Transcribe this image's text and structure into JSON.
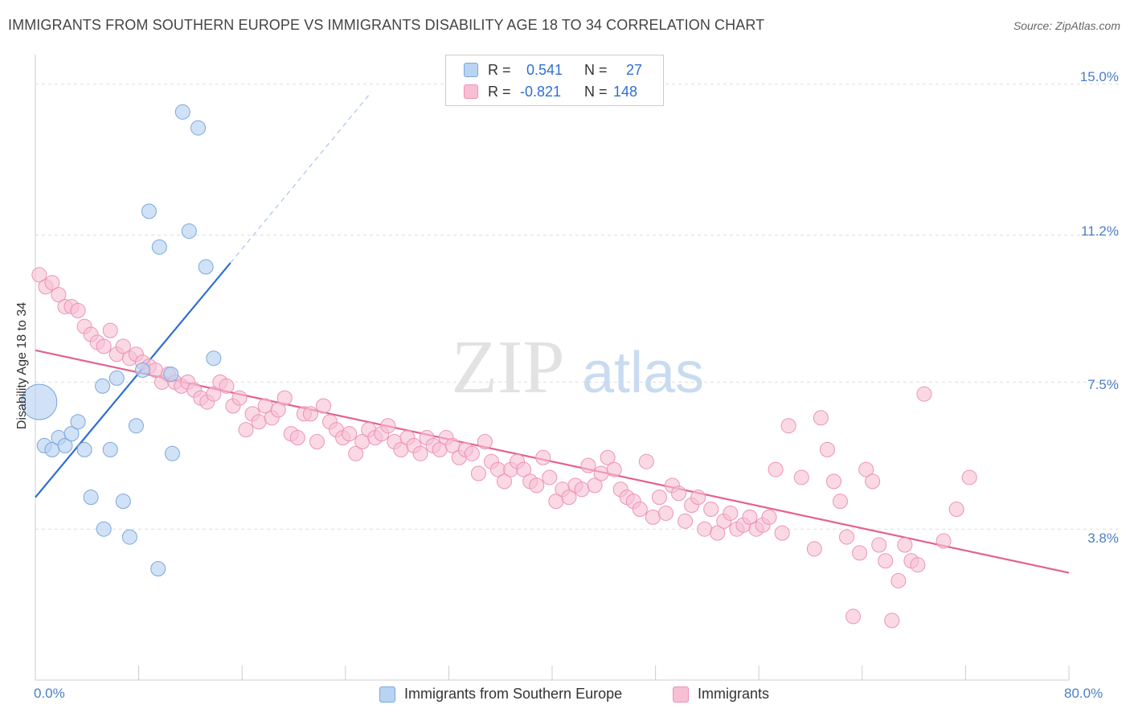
{
  "title": "IMMIGRANTS FROM SOUTHERN EUROPE VS IMMIGRANTS DISABILITY AGE 18 TO 34 CORRELATION CHART",
  "source": "Source: ZipAtlas.com",
  "watermark": {
    "zip": "ZIP",
    "atlas": "atlas"
  },
  "legend_top": {
    "rows": [
      {
        "r_label": "R =",
        "r_value": "0.541",
        "n_label": "N =",
        "n_value": "27"
      },
      {
        "r_label": "R =",
        "r_value": "-0.821",
        "n_label": "N =",
        "n_value": "148"
      }
    ]
  },
  "chart_data": {
    "type": "scatter",
    "title": "IMMIGRANTS FROM SOUTHERN EUROPE VS IMMIGRANTS DISABILITY AGE 18 TO 34 CORRELATION CHART",
    "xlabel": "",
    "ylabel": "Disability Age 18 to 34",
    "xlim": [
      0,
      80
    ],
    "ylim": [
      0,
      15.5
    ],
    "x_tick_labels": [
      "0.0%",
      "80.0%"
    ],
    "y_ticks": [
      3.8,
      7.5,
      11.2,
      15.0
    ],
    "y_tick_labels": [
      "3.8%",
      "7.5%",
      "11.2%",
      "15.0%"
    ],
    "grid": true,
    "legend_position": "bottom",
    "colors": {
      "blue_fill": "#b9d3f2",
      "blue_stroke": "#7aa7dc",
      "blue_line": "#2e6fd0",
      "pink_fill": "#f7bfd3",
      "pink_stroke": "#ec94b3",
      "pink_line": "#e4618f"
    },
    "series": [
      {
        "name": "Immigrants from Southern Europe",
        "r": 0.541,
        "n": 27,
        "trend": {
          "x": [
            0,
            15.1
          ],
          "y": [
            4.6,
            10.5
          ],
          "dashed_to": {
            "x": 26,
            "y": 14.8
          }
        },
        "points": [
          {
            "x": 0.3,
            "y": 7.0,
            "big": true
          },
          {
            "x": 0.7,
            "y": 5.9
          },
          {
            "x": 1.3,
            "y": 5.8
          },
          {
            "x": 1.8,
            "y": 6.1
          },
          {
            "x": 2.3,
            "y": 5.9
          },
          {
            "x": 2.8,
            "y": 6.2
          },
          {
            "x": 3.3,
            "y": 6.5
          },
          {
            "x": 3.8,
            "y": 5.8
          },
          {
            "x": 4.3,
            "y": 4.6
          },
          {
            "x": 5.2,
            "y": 7.4
          },
          {
            "x": 5.3,
            "y": 3.8
          },
          {
            "x": 5.8,
            "y": 5.8
          },
          {
            "x": 6.3,
            "y": 7.6
          },
          {
            "x": 6.8,
            "y": 4.5
          },
          {
            "x": 7.3,
            "y": 3.6
          },
          {
            "x": 7.8,
            "y": 6.4
          },
          {
            "x": 8.3,
            "y": 7.8
          },
          {
            "x": 8.8,
            "y": 11.8
          },
          {
            "x": 9.5,
            "y": 2.8
          },
          {
            "x": 9.6,
            "y": 10.9
          },
          {
            "x": 10.5,
            "y": 7.7
          },
          {
            "x": 10.6,
            "y": 5.7
          },
          {
            "x": 11.4,
            "y": 14.3
          },
          {
            "x": 11.9,
            "y": 11.3
          },
          {
            "x": 12.6,
            "y": 13.9
          },
          {
            "x": 13.2,
            "y": 10.4
          },
          {
            "x": 13.8,
            "y": 8.1
          }
        ]
      },
      {
        "name": "Immigrants",
        "r": -0.821,
        "n": 148,
        "trend": {
          "x": [
            0,
            80
          ],
          "y": [
            8.3,
            2.7
          ]
        },
        "points": [
          {
            "x": 0.3,
            "y": 10.2
          },
          {
            "x": 0.8,
            "y": 9.9
          },
          {
            "x": 1.3,
            "y": 10.0
          },
          {
            "x": 1.8,
            "y": 9.7
          },
          {
            "x": 2.3,
            "y": 9.4
          },
          {
            "x": 2.8,
            "y": 9.4
          },
          {
            "x": 3.3,
            "y": 9.3
          },
          {
            "x": 3.8,
            "y": 8.9
          },
          {
            "x": 4.3,
            "y": 8.7
          },
          {
            "x": 4.8,
            "y": 8.5
          },
          {
            "x": 5.3,
            "y": 8.4
          },
          {
            "x": 5.8,
            "y": 8.8
          },
          {
            "x": 6.3,
            "y": 8.2
          },
          {
            "x": 6.8,
            "y": 8.4
          },
          {
            "x": 7.3,
            "y": 8.1
          },
          {
            "x": 7.8,
            "y": 8.2
          },
          {
            "x": 8.3,
            "y": 8.0
          },
          {
            "x": 8.8,
            "y": 7.9
          },
          {
            "x": 9.3,
            "y": 7.8
          },
          {
            "x": 9.8,
            "y": 7.5
          },
          {
            "x": 10.3,
            "y": 7.7
          },
          {
            "x": 10.8,
            "y": 7.5
          },
          {
            "x": 11.3,
            "y": 7.4
          },
          {
            "x": 11.8,
            "y": 7.5
          },
          {
            "x": 12.3,
            "y": 7.3
          },
          {
            "x": 12.8,
            "y": 7.1
          },
          {
            "x": 13.3,
            "y": 7.0
          },
          {
            "x": 13.8,
            "y": 7.2
          },
          {
            "x": 14.3,
            "y": 7.5
          },
          {
            "x": 14.8,
            "y": 7.4
          },
          {
            "x": 15.3,
            "y": 6.9
          },
          {
            "x": 15.8,
            "y": 7.1
          },
          {
            "x": 16.3,
            "y": 6.3
          },
          {
            "x": 16.8,
            "y": 6.7
          },
          {
            "x": 17.3,
            "y": 6.5
          },
          {
            "x": 17.8,
            "y": 6.9
          },
          {
            "x": 18.3,
            "y": 6.6
          },
          {
            "x": 18.8,
            "y": 6.8
          },
          {
            "x": 19.3,
            "y": 7.1
          },
          {
            "x": 19.8,
            "y": 6.2
          },
          {
            "x": 20.3,
            "y": 6.1
          },
          {
            "x": 20.8,
            "y": 6.7
          },
          {
            "x": 21.3,
            "y": 6.7
          },
          {
            "x": 21.8,
            "y": 6.0
          },
          {
            "x": 22.3,
            "y": 6.9
          },
          {
            "x": 22.8,
            "y": 6.5
          },
          {
            "x": 23.3,
            "y": 6.3
          },
          {
            "x": 23.8,
            "y": 6.1
          },
          {
            "x": 24.3,
            "y": 6.2
          },
          {
            "x": 24.8,
            "y": 5.7
          },
          {
            "x": 25.3,
            "y": 6.0
          },
          {
            "x": 25.8,
            "y": 6.3
          },
          {
            "x": 26.3,
            "y": 6.1
          },
          {
            "x": 26.8,
            "y": 6.2
          },
          {
            "x": 27.3,
            "y": 6.4
          },
          {
            "x": 27.8,
            "y": 6.0
          },
          {
            "x": 28.3,
            "y": 5.8
          },
          {
            "x": 28.8,
            "y": 6.1
          },
          {
            "x": 29.3,
            "y": 5.9
          },
          {
            "x": 29.8,
            "y": 5.7
          },
          {
            "x": 30.3,
            "y": 6.1
          },
          {
            "x": 30.8,
            "y": 5.9
          },
          {
            "x": 31.3,
            "y": 5.8
          },
          {
            "x": 31.8,
            "y": 6.1
          },
          {
            "x": 32.3,
            "y": 5.9
          },
          {
            "x": 32.8,
            "y": 5.6
          },
          {
            "x": 33.3,
            "y": 5.8
          },
          {
            "x": 33.8,
            "y": 5.7
          },
          {
            "x": 34.3,
            "y": 5.2
          },
          {
            "x": 34.8,
            "y": 6.0
          },
          {
            "x": 35.3,
            "y": 5.5
          },
          {
            "x": 35.8,
            "y": 5.3
          },
          {
            "x": 36.3,
            "y": 5.0
          },
          {
            "x": 36.8,
            "y": 5.3
          },
          {
            "x": 37.3,
            "y": 5.5
          },
          {
            "x": 37.8,
            "y": 5.3
          },
          {
            "x": 38.3,
            "y": 5.0
          },
          {
            "x": 38.8,
            "y": 4.9
          },
          {
            "x": 39.3,
            "y": 5.6
          },
          {
            "x": 39.8,
            "y": 5.1
          },
          {
            "x": 40.3,
            "y": 4.5
          },
          {
            "x": 40.8,
            "y": 4.8
          },
          {
            "x": 41.3,
            "y": 4.6
          },
          {
            "x": 41.8,
            "y": 4.9
          },
          {
            "x": 42.3,
            "y": 4.8
          },
          {
            "x": 42.8,
            "y": 5.4
          },
          {
            "x": 43.3,
            "y": 4.9
          },
          {
            "x": 43.8,
            "y": 5.2
          },
          {
            "x": 44.3,
            "y": 5.6
          },
          {
            "x": 44.8,
            "y": 5.3
          },
          {
            "x": 45.3,
            "y": 4.8
          },
          {
            "x": 45.8,
            "y": 4.6
          },
          {
            "x": 46.3,
            "y": 4.5
          },
          {
            "x": 46.8,
            "y": 4.3
          },
          {
            "x": 47.3,
            "y": 5.5
          },
          {
            "x": 47.8,
            "y": 4.1
          },
          {
            "x": 48.3,
            "y": 4.6
          },
          {
            "x": 48.8,
            "y": 4.2
          },
          {
            "x": 49.3,
            "y": 4.9
          },
          {
            "x": 49.8,
            "y": 4.7
          },
          {
            "x": 50.3,
            "y": 4.0
          },
          {
            "x": 50.8,
            "y": 4.4
          },
          {
            "x": 51.3,
            "y": 4.6
          },
          {
            "x": 51.8,
            "y": 3.8
          },
          {
            "x": 52.3,
            "y": 4.3
          },
          {
            "x": 52.8,
            "y": 3.7
          },
          {
            "x": 53.3,
            "y": 4.0
          },
          {
            "x": 53.8,
            "y": 4.2
          },
          {
            "x": 54.3,
            "y": 3.8
          },
          {
            "x": 54.8,
            "y": 3.9
          },
          {
            "x": 55.3,
            "y": 4.1
          },
          {
            "x": 55.8,
            "y": 3.8
          },
          {
            "x": 56.3,
            "y": 3.9
          },
          {
            "x": 56.8,
            "y": 4.1
          },
          {
            "x": 57.3,
            "y": 5.3
          },
          {
            "x": 57.8,
            "y": 3.7
          },
          {
            "x": 58.3,
            "y": 6.4
          },
          {
            "x": 59.3,
            "y": 5.1
          },
          {
            "x": 60.3,
            "y": 3.3
          },
          {
            "x": 60.8,
            "y": 6.6
          },
          {
            "x": 61.3,
            "y": 5.8
          },
          {
            "x": 61.8,
            "y": 5.0
          },
          {
            "x": 62.3,
            "y": 4.5
          },
          {
            "x": 62.8,
            "y": 3.6
          },
          {
            "x": 63.3,
            "y": 1.6
          },
          {
            "x": 63.8,
            "y": 3.2
          },
          {
            "x": 64.3,
            "y": 5.3
          },
          {
            "x": 64.8,
            "y": 5.0
          },
          {
            "x": 65.3,
            "y": 3.4
          },
          {
            "x": 65.8,
            "y": 3.0
          },
          {
            "x": 66.3,
            "y": 1.5
          },
          {
            "x": 66.8,
            "y": 2.5
          },
          {
            "x": 67.3,
            "y": 3.4
          },
          {
            "x": 67.8,
            "y": 3.0
          },
          {
            "x": 68.3,
            "y": 2.9
          },
          {
            "x": 68.8,
            "y": 7.2
          },
          {
            "x": 70.3,
            "y": 3.5
          },
          {
            "x": 71.3,
            "y": 4.3
          },
          {
            "x": 72.3,
            "y": 5.1
          }
        ]
      }
    ]
  },
  "legend_bottom": {
    "items": [
      {
        "label": "Immigrants from Southern Europe"
      },
      {
        "label": "Immigrants"
      }
    ]
  }
}
